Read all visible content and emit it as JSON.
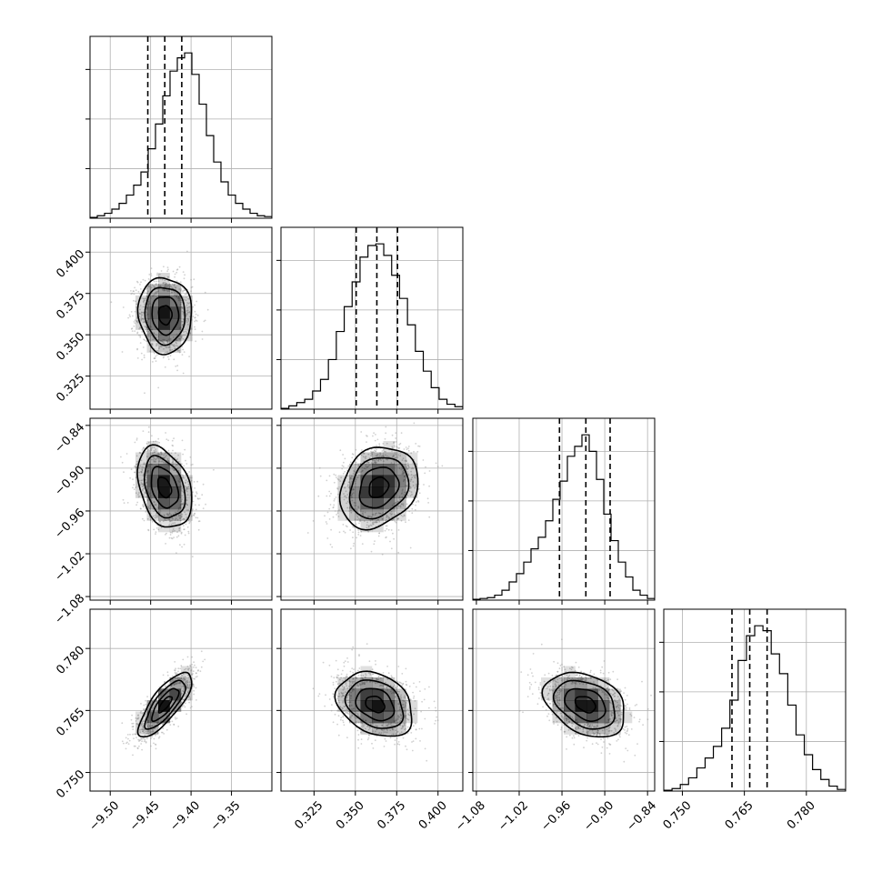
{
  "chart_data": {
    "type": "corner",
    "parameters": [
      {
        "lim": [
          -9.525,
          -9.3
        ],
        "ticks": [
          -9.5,
          -9.45,
          -9.4,
          -9.35
        ],
        "tick_labels": [
          "−9.50",
          "−9.45",
          "−9.40",
          "−9.35"
        ],
        "quantiles": [
          -9.4535,
          -9.4325,
          -9.4115
        ],
        "hist": [
          0.5,
          1.5,
          3,
          5.5,
          9,
          14,
          20,
          28,
          42,
          57,
          74,
          89,
          97,
          100,
          87,
          69,
          50,
          34,
          22,
          14,
          9,
          5.5,
          3,
          1.5,
          1
        ],
        "hist_ylim": [
          0,
          110
        ],
        "hist_grid": [
          30,
          60,
          90
        ]
      },
      {
        "lim": [
          0.305,
          0.415
        ],
        "ticks": [
          0.325,
          0.35,
          0.375,
          0.4
        ],
        "tick_labels": [
          "0.325",
          "0.350",
          "0.375",
          "0.400"
        ],
        "quantiles": [
          0.3505,
          0.363,
          0.3755
        ],
        "hist": [
          0.5,
          2,
          4,
          6,
          11,
          18,
          30,
          47,
          62,
          77,
          92,
          99,
          100,
          93,
          81,
          67,
          51,
          35,
          23,
          13,
          6,
          3,
          1.5
        ],
        "hist_ylim": [
          0,
          110
        ],
        "hist_grid": [
          30,
          60,
          90
        ]
      },
      {
        "lim": [
          -1.085,
          -0.83
        ],
        "ticks": [
          -1.08,
          -1.02,
          -0.96,
          -0.9,
          -0.84
        ],
        "tick_labels": [
          "−1.08",
          "−1.02",
          "−0.96",
          "−0.90",
          "−0.84"
        ],
        "quantiles": [
          -0.9635,
          -0.9265,
          -0.8925
        ],
        "hist": [
          0.5,
          1,
          1.5,
          3,
          6,
          11,
          16,
          23,
          31,
          38,
          48,
          61,
          72,
          87,
          93,
          100,
          90,
          73,
          52,
          36,
          23,
          14,
          6,
          3,
          1
        ],
        "hist_ylim": [
          0,
          110
        ],
        "hist_grid": [
          30,
          60,
          90
        ]
      },
      {
        "lim": [
          0.7455,
          0.7895
        ],
        "ticks": [
          0.75,
          0.765,
          0.78
        ],
        "tick_labels": [
          "0.750",
          "0.765",
          "0.780"
        ],
        "quantiles": [
          0.762,
          0.7663,
          0.7705
        ],
        "hist": [
          0.5,
          1.5,
          4,
          8,
          14,
          20,
          27,
          38,
          55,
          79,
          94,
          100,
          97,
          83,
          71,
          52,
          34,
          22,
          13,
          7,
          3,
          1
        ],
        "hist_ylim": [
          0,
          110
        ],
        "hist_grid": [
          30,
          60,
          90
        ]
      }
    ],
    "pairs": [
      {
        "x": 0,
        "y": 1,
        "cx": -9.432,
        "cy": 0.362,
        "sx": 0.0165,
        "sy": 0.0115,
        "rho": -0.05
      },
      {
        "x": 0,
        "y": 2,
        "cx": -9.433,
        "cy": -0.927,
        "sx": 0.0168,
        "sy": 0.0285,
        "rho": -0.33
      },
      {
        "x": 1,
        "y": 2,
        "cx": 0.364,
        "cy": -0.927,
        "sx": 0.0118,
        "sy": 0.0285,
        "rho": 0.22
      },
      {
        "x": 0,
        "y": 3,
        "cx": -9.432,
        "cy": 0.7665,
        "sx": 0.0165,
        "sy": 0.0039,
        "rho": 0.78
      },
      {
        "x": 1,
        "y": 3,
        "cx": 0.362,
        "cy": 0.7665,
        "sx": 0.0115,
        "sy": 0.0039,
        "rho": -0.28
      },
      {
        "x": 2,
        "y": 3,
        "cx": -0.927,
        "cy": 0.7665,
        "sx": 0.0285,
        "sy": 0.0039,
        "rho": -0.33
      }
    ],
    "contour_levels_sigma": [
      0.5,
      1.0,
      1.5,
      2.0
    ],
    "grid": true,
    "colors": {
      "line": "#000000",
      "grid": "#b0b0b0",
      "points": "#9a9a9a",
      "density": "#000000"
    }
  }
}
